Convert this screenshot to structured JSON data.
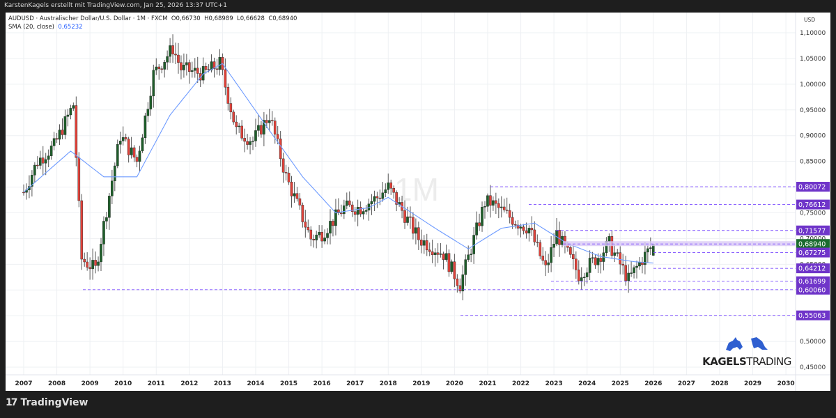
{
  "topbar": {
    "text": "KarstenKagels erstellt mit TradingView.com, Jan 25, 2026 13:37 UTC+1"
  },
  "legend": {
    "symbol_line": "AUDUSD · Australischer Dollar/U.S. Dollar · 1M · FXCM",
    "ohlc": {
      "open": "O0,66730",
      "high": "H0,68989",
      "low": "L0,66628",
      "close": "C0,68940"
    },
    "sma_label": "SMA (20, close)",
    "sma_value": "0,65232"
  },
  "watermark": "1M",
  "price_axis": {
    "currency": "USD"
  },
  "footer": {
    "brand": "TradingView"
  },
  "branding": {
    "name_bold": "KAGELS",
    "name_light": "TRADING"
  },
  "colors": {
    "up": "#1e5e2a",
    "down": "#e0423a",
    "sma": "#6e9bff",
    "level": "#7c4dff",
    "label_bg": "#6f35c9",
    "current_bg": "#1a6b2d"
  },
  "chart_data": {
    "type": "candlestick",
    "title": "AUDUSD · Australischer Dollar/U.S. Dollar · 1M · FXCM",
    "xlabel": "",
    "ylabel": "USD",
    "x_ticks": [
      "2007",
      "2008",
      "2009",
      "2010",
      "2011",
      "2012",
      "2013",
      "2014",
      "2015",
      "2016",
      "2017",
      "2018",
      "2019",
      "2020",
      "2021",
      "2022",
      "2023",
      "2024",
      "2025",
      "2026",
      "2027",
      "2028",
      "2029",
      "2030"
    ],
    "y_ticks": [
      "1,10000",
      "1,05000",
      "1,00000",
      "0,95000",
      "0,90000",
      "0,85000",
      "0,80000",
      "0,75000",
      "0,70000",
      "0,65000",
      "0,60000",
      "0,55000",
      "0,50000",
      "0,45000"
    ],
    "ylim": [
      0.43,
      1.12
    ],
    "last": {
      "open": 0.6673,
      "high": 0.68989,
      "low": 0.66628,
      "close": 0.6894
    },
    "sma20_last": 0.65232,
    "horizontal_levels": [
      0.80072,
      0.76612,
      0.71577,
      0.6894,
      0.67275,
      0.64212,
      0.61699,
      0.6006,
      0.55063
    ],
    "series": [
      {
        "name": "AUDUSD monthly close (approx)",
        "x": [
          "2007-01",
          "2007-06",
          "2007-12",
          "2008-07",
          "2008-10",
          "2009-03",
          "2009-12",
          "2010-06",
          "2010-12",
          "2011-07",
          "2011-10",
          "2012-06",
          "2012-12",
          "2013-06",
          "2013-12",
          "2014-06",
          "2014-12",
          "2015-09",
          "2016-01",
          "2016-09",
          "2017-03",
          "2017-09",
          "2018-01",
          "2018-12",
          "2019-09",
          "2020-03",
          "2020-12",
          "2021-02",
          "2021-12",
          "2022-04",
          "2022-10",
          "2023-02",
          "2023-10",
          "2024-06",
          "2024-09",
          "2025-04",
          "2025-09",
          "2026-01"
        ],
        "values": [
          0.79,
          0.85,
          0.88,
          0.96,
          0.66,
          0.64,
          0.9,
          0.85,
          1.02,
          1.07,
          1.03,
          1.02,
          1.04,
          0.91,
          0.89,
          0.94,
          0.82,
          0.7,
          0.71,
          0.76,
          0.76,
          0.78,
          0.8,
          0.7,
          0.67,
          0.61,
          0.77,
          0.77,
          0.73,
          0.72,
          0.64,
          0.71,
          0.63,
          0.67,
          0.69,
          0.62,
          0.66,
          0.6894
        ]
      },
      {
        "name": "SMA (20, close)",
        "x": [
          "2007-01",
          "2008-06",
          "2009-06",
          "2010-06",
          "2011-06",
          "2012-06",
          "2013-01",
          "2014-06",
          "2015-06",
          "2016-06",
          "2017-06",
          "2018-01",
          "2019-06",
          "2020-06",
          "2021-06",
          "2022-06",
          "2023-06",
          "2024-06",
          "2025-06",
          "2026-01"
        ],
        "values": [
          0.79,
          0.87,
          0.82,
          0.82,
          0.94,
          1.02,
          1.04,
          0.91,
          0.82,
          0.75,
          0.76,
          0.78,
          0.72,
          0.68,
          0.72,
          0.73,
          0.69,
          0.665,
          0.655,
          0.65232
        ]
      }
    ],
    "grid": true,
    "legend_position": "top-left"
  }
}
